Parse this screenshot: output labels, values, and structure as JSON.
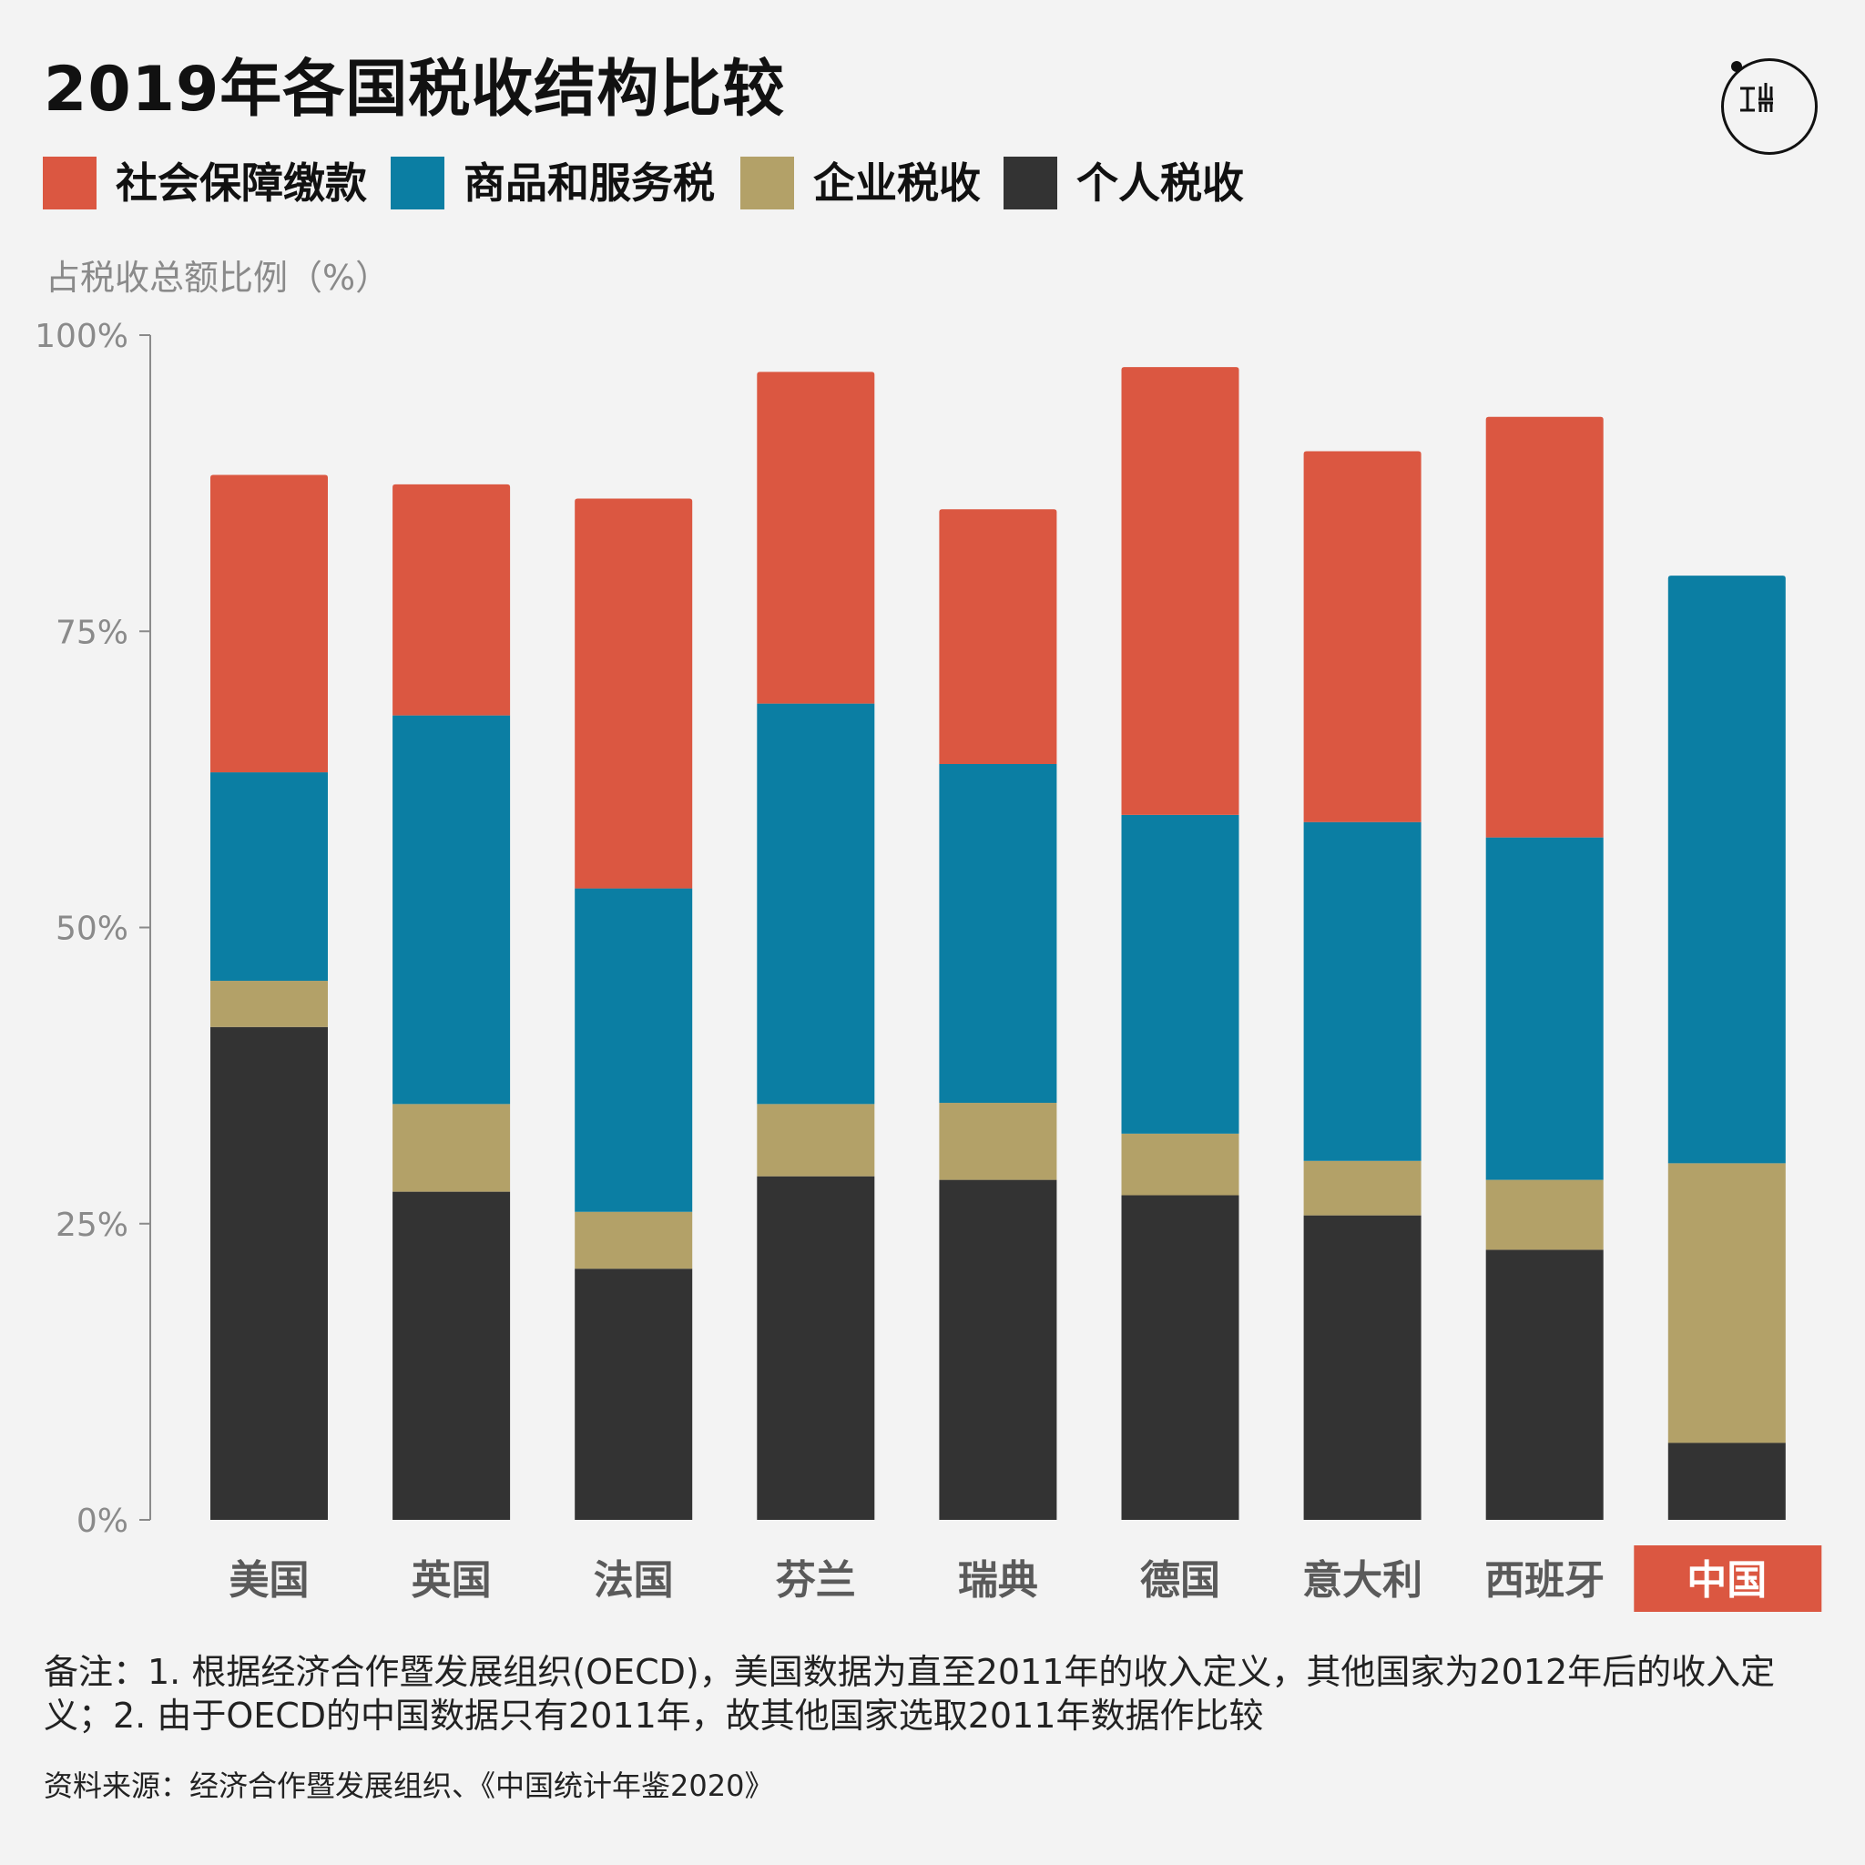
{
  "title": "2019年各国税收结构比较",
  "logo": {
    "icon": "initium-logo-icon"
  },
  "colors": {
    "social": "#db5741",
    "goods": "#0b7ea3",
    "corporate": "#b3a168",
    "personal": "#333333",
    "axis": "#8a8a8a",
    "highlight_bg": "#db5741"
  },
  "legend": [
    {
      "label": "社会保障缴款",
      "color": "#db5741"
    },
    {
      "label": "商品和服务税",
      "color": "#0b7ea3"
    },
    {
      "label": "企业税收",
      "color": "#b3a168"
    },
    {
      "label": "个人税收",
      "color": "#333333"
    }
  ],
  "chart_data": {
    "type": "bar",
    "stacked": true,
    "ylabel": "占税收总额比例（%）",
    "ylim": [
      0,
      100
    ],
    "yticks": [
      "0%",
      "25%",
      "50%",
      "75%",
      "100%"
    ],
    "yticks_values": [
      0,
      25,
      50,
      75,
      100
    ],
    "categories": [
      "美国",
      "英国",
      "法国",
      "芬兰",
      "瑞典",
      "德国",
      "意大利",
      "西班牙",
      "中国"
    ],
    "highlighted_category": "中国",
    "series": [
      {
        "name": "个人税收",
        "color": "#333333",
        "values": [
          41.6,
          27.7,
          21.2,
          29.0,
          28.7,
          27.4,
          25.7,
          22.8,
          6.5
        ]
      },
      {
        "name": "企业税收",
        "color": "#b3a168",
        "values": [
          3.9,
          7.4,
          4.8,
          6.1,
          6.5,
          5.2,
          4.6,
          5.9,
          23.6
        ]
      },
      {
        "name": "商品和服务税",
        "color": "#0b7ea3",
        "values": [
          17.6,
          32.8,
          27.3,
          33.8,
          28.6,
          26.9,
          28.6,
          28.9,
          49.6
        ]
      },
      {
        "name": "社会保障缴款",
        "color": "#db5741",
        "values": [
          25.1,
          19.5,
          32.9,
          28.0,
          21.5,
          37.8,
          31.3,
          35.5,
          0
        ]
      }
    ]
  },
  "note": "备注：1. 根据经济合作暨发展组织(OECD)，美国数据为直至2011年的收入定义，其他国家为2012年后的收入定义；2. 由于OECD的中国数据只有2011年，故其他国家选取2011年数据作比较",
  "source": "资料来源：经济合作暨发展组织、《中国统计年鉴2020》"
}
